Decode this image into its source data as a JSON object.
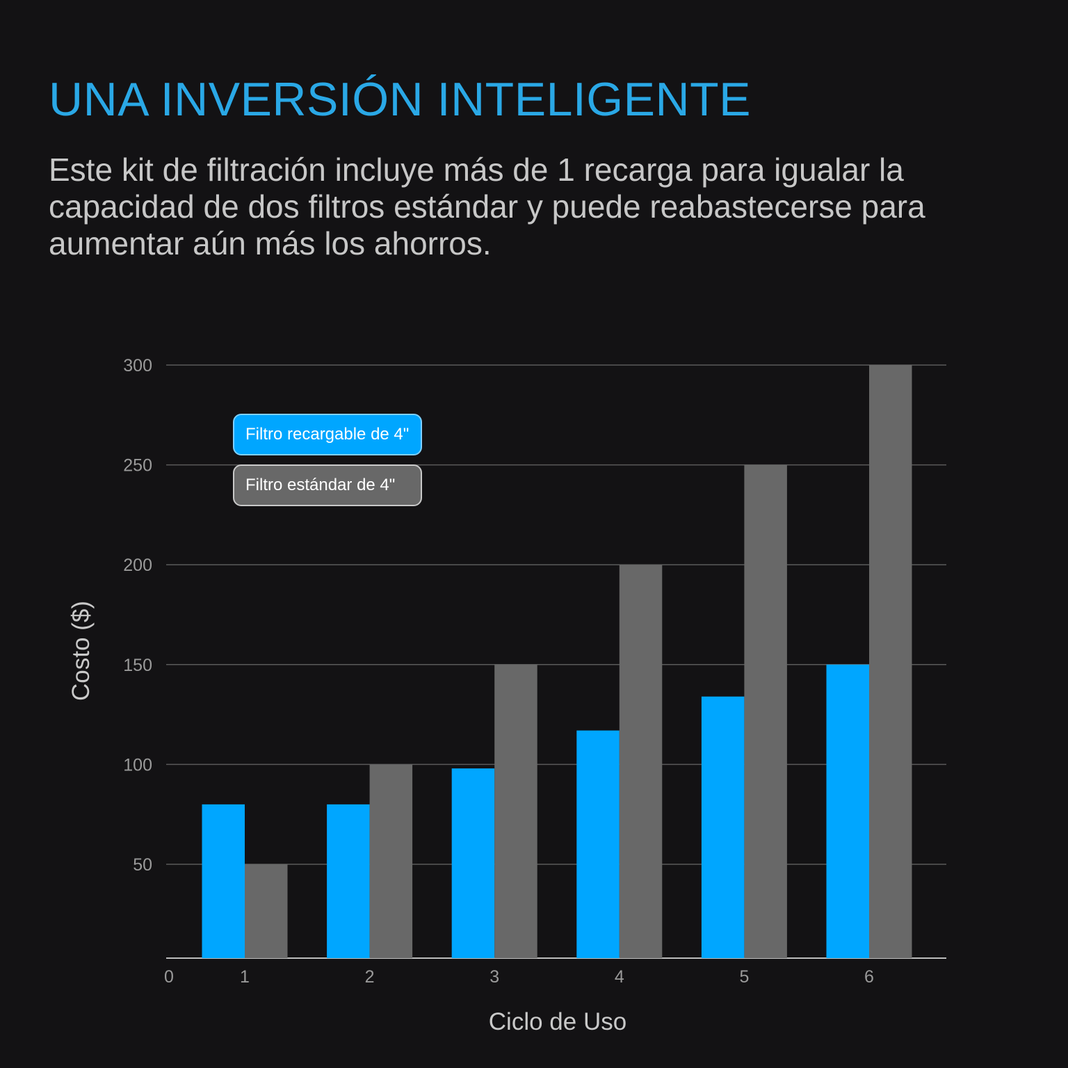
{
  "header": {
    "title": "UNA INVERSIÓN INTELIGENTE",
    "subtitle": "Este kit de filtración incluye más de 1 recarga para igualar la capacidad de dos filtros estándar y puede reabastecerse para aumentar aún más los ahorros."
  },
  "colors": {
    "background": "#131214",
    "title": "#2aa8e6",
    "refillable": "#00a6ff",
    "standard": "#686868",
    "grid": "#5a5a5a"
  },
  "chart_data": {
    "type": "bar",
    "x_origin_label": "0",
    "categories": [
      "1",
      "2",
      "3",
      "4",
      "5",
      "6"
    ],
    "series": [
      {
        "name": "Filtro recargable de 4\"",
        "color": "#00a6ff",
        "values": [
          80,
          80,
          98,
          117,
          134,
          150
        ]
      },
      {
        "name": "Filtro estándar de 4\"",
        "color": "#686868",
        "values": [
          50,
          100,
          150,
          200,
          250,
          300
        ]
      }
    ],
    "xlabel": "Ciclo de Uso",
    "ylabel": "Costo ($)",
    "ylim": [
      3,
      300
    ],
    "yticks": [
      50,
      100,
      150,
      200,
      250,
      300
    ],
    "grid": true,
    "legend_position": "top-left"
  }
}
